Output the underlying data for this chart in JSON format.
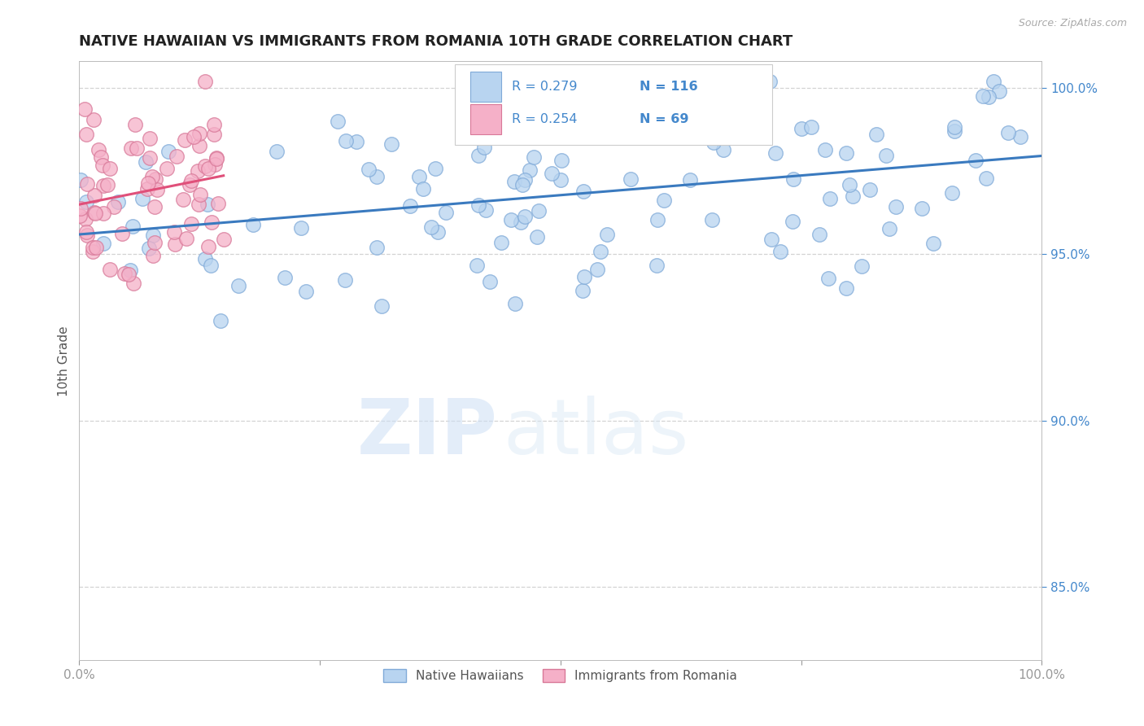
{
  "title": "NATIVE HAWAIIAN VS IMMIGRANTS FROM ROMANIA 10TH GRADE CORRELATION CHART",
  "source_text": "Source: ZipAtlas.com",
  "ylabel": "10th Grade",
  "watermark_zip": "ZIP",
  "watermark_atlas": "atlas",
  "legend_label1": "Native Hawaiians",
  "legend_label2": "Immigrants from Romania",
  "r1": 0.279,
  "n1": 116,
  "r2": 0.254,
  "n2": 69,
  "color1": "#b8d4f0",
  "color2": "#f5b0c8",
  "line_color1": "#3a7abf",
  "line_color2": "#e0507a",
  "dot_edge_color1": "#80aad8",
  "dot_edge_color2": "#d87898",
  "background_color": "#ffffff",
  "grid_color": "#c8c8c8",
  "title_color": "#222222",
  "ytick_color": "#4488cc",
  "axis_color": "#bbbbbb"
}
